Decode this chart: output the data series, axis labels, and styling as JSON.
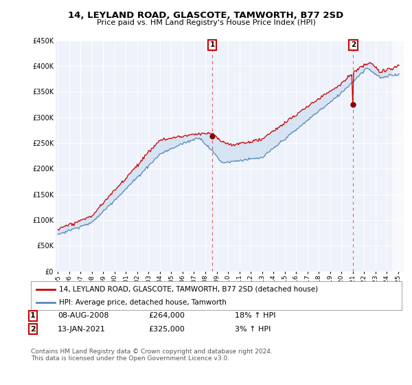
{
  "title": "14, LEYLAND ROAD, GLASCOTE, TAMWORTH, B77 2SD",
  "subtitle": "Price paid vs. HM Land Registry's House Price Index (HPI)",
  "legend_line1": "14, LEYLAND ROAD, GLASCOTE, TAMWORTH, B77 2SD (detached house)",
  "legend_line2": "HPI: Average price, detached house, Tamworth",
  "footer": "Contains HM Land Registry data © Crown copyright and database right 2024.\nThis data is licensed under the Open Government Licence v3.0.",
  "point1_date": "08-AUG-2008",
  "point1_price": "£264,000",
  "point1_hpi": "18% ↑ HPI",
  "point2_date": "13-JAN-2021",
  "point2_price": "£325,000",
  "point2_hpi": "3% ↑ HPI",
  "sale_color": "#cc0000",
  "hpi_color": "#5588bb",
  "fill_color": "#ccddf0",
  "vline_color": "#cc0000",
  "background_color": "#ffffff",
  "plot_bg_color": "#eef2fa",
  "ylim_min": 0,
  "ylim_max": 450000,
  "sale1_year": 2008.62,
  "sale1_value": 264000,
  "sale2_year": 2021.04,
  "sale2_value": 325000,
  "xstart": 1995,
  "xend": 2025
}
